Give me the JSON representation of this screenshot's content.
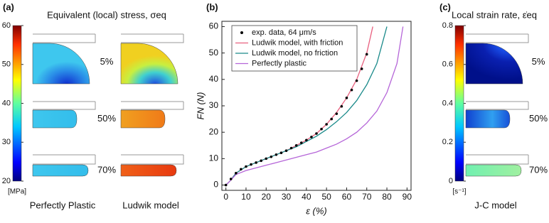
{
  "chart_data": [
    {
      "type": "contour",
      "label": "(a)",
      "title": "Equivalent (local) stress, σeq",
      "colorbar_unit": "[MPa]",
      "ylim": [
        20,
        60
      ],
      "yticks": [
        20,
        30,
        40,
        50,
        60
      ],
      "rows": [
        "5%",
        "50%",
        "70%"
      ],
      "columns": [
        "Perfectly Plastic",
        "Ludwik model"
      ]
    },
    {
      "type": "line",
      "label": "(b)",
      "xlabel": "ε (%)",
      "ylabel": "FN (N)",
      "xlim": [
        -2,
        92
      ],
      "ylim": [
        -2,
        62
      ],
      "xticks": [
        0,
        10,
        20,
        30,
        40,
        50,
        60,
        70,
        80,
        90
      ],
      "yticks": [
        0,
        10,
        20,
        30,
        40,
        50,
        60
      ],
      "legend": "upper left",
      "series": [
        {
          "name": "exp. data, 64 μm/s",
          "color": "#000000",
          "marker": "dot",
          "x": [
            0,
            2.5,
            5,
            7.5,
            10,
            12.5,
            15,
            17.5,
            20,
            22.5,
            25,
            27.5,
            30,
            32.5,
            35,
            37.5,
            40,
            42.5,
            45,
            47.5,
            50,
            52.5,
            55,
            57.5,
            60,
            62.5,
            65,
            67.5,
            70
          ],
          "values": [
            0,
            2.3,
            4.5,
            6,
            7,
            7.8,
            8.5,
            9.2,
            10,
            10.7,
            11.5,
            12.2,
            13,
            14,
            15,
            16,
            17,
            18.2,
            19.5,
            21.2,
            23,
            25,
            27,
            29.8,
            33,
            36,
            39.5,
            44,
            49.5
          ]
        },
        {
          "name": "Ludwik model, with friction",
          "color": "#e8607f",
          "x": [
            0,
            2,
            5,
            10,
            15,
            20,
            25,
            30,
            35,
            40,
            45,
            50,
            55,
            60,
            65,
            70,
            73
          ],
          "values": [
            0,
            1.5,
            4.5,
            7,
            8.5,
            10,
            11.5,
            13,
            15,
            17,
            19.5,
            23,
            27.5,
            33,
            40,
            50,
            60
          ]
        },
        {
          "name": "Ludwik model, no friction",
          "color": "#1a8a8a",
          "x": [
            0,
            2,
            5,
            10,
            15,
            20,
            25,
            30,
            35,
            40,
            45,
            50,
            55,
            60,
            65,
            70,
            75,
            80
          ],
          "values": [
            0,
            1.5,
            4.5,
            7,
            8.5,
            10,
            11.5,
            13,
            14.5,
            16.5,
            18.5,
            21,
            24,
            27.5,
            32,
            38,
            46,
            60
          ]
        },
        {
          "name": "Perfectly plastic",
          "color": "#b565d8",
          "x": [
            0,
            2,
            5,
            10,
            15,
            20,
            25,
            30,
            35,
            40,
            45,
            50,
            55,
            60,
            65,
            70,
            75,
            80,
            85,
            88
          ],
          "values": [
            0,
            1.5,
            4,
            5.5,
            6.5,
            7.5,
            8.5,
            9.5,
            10.5,
            11.5,
            12.5,
            14,
            15.5,
            17.5,
            20,
            23.5,
            28,
            35,
            46,
            60
          ]
        }
      ]
    },
    {
      "type": "contour",
      "label": "(c)",
      "title": "Local strain rate, ε̇eq",
      "colorbar_unit": "[s⁻¹]",
      "ylim": [
        0,
        0.8
      ],
      "yticks": [
        0,
        0.2,
        0.4,
        0.6,
        0.8
      ],
      "rows": [
        "5%",
        "50%",
        "70%"
      ],
      "columns": [
        "J-C model"
      ]
    }
  ]
}
